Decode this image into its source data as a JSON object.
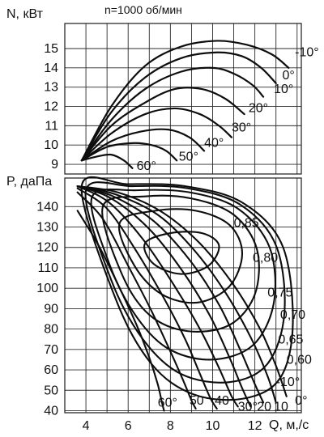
{
  "chart_data": [
    {
      "id": "power",
      "type": "line",
      "title": "n=1000 об/мин",
      "ylabel": "N, кВт",
      "xlabel": "",
      "y_ticks": [
        9,
        10,
        11,
        12,
        13,
        14,
        15
      ],
      "xlim": [
        3,
        14.2
      ],
      "ylim": [
        8.5,
        16.3
      ],
      "grid": true,
      "series": [
        {
          "name": "-10°",
          "points": [
            [
              3.8,
              9.2
            ],
            [
              5.2,
              12.0
            ],
            [
              6.8,
              14.1
            ],
            [
              8.5,
              15.1
            ],
            [
              10.2,
              15.4
            ],
            [
              11.6,
              15.2
            ],
            [
              12.8,
              14.7
            ],
            [
              13.6,
              14.0
            ]
          ]
        },
        {
          "name": "0°",
          "points": [
            [
              3.8,
              9.2
            ],
            [
              5.2,
              11.7
            ],
            [
              6.8,
              13.5
            ],
            [
              8.5,
              14.5
            ],
            [
              10.2,
              14.8
            ],
            [
              11.4,
              14.6
            ],
            [
              12.3,
              14.0
            ],
            [
              13.0,
              13.2
            ]
          ]
        },
        {
          "name": "10°",
          "points": [
            [
              3.8,
              9.2
            ],
            [
              5.2,
              11.3
            ],
            [
              6.8,
              12.9
            ],
            [
              8.5,
              13.8
            ],
            [
              10.0,
              14.0
            ],
            [
              11.0,
              13.7
            ],
            [
              11.9,
              13.1
            ],
            [
              12.4,
              12.5
            ]
          ]
        },
        {
          "name": "20°",
          "points": [
            [
              3.8,
              9.2
            ],
            [
              5.2,
              11.0
            ],
            [
              6.8,
              12.2
            ],
            [
              8.2,
              12.9
            ],
            [
              9.5,
              12.9
            ],
            [
              10.6,
              12.4
            ],
            [
              11.5,
              11.6
            ]
          ]
        },
        {
          "name": "30°",
          "points": [
            [
              3.8,
              9.2
            ],
            [
              5.2,
              10.6
            ],
            [
              6.8,
              11.6
            ],
            [
              8.2,
              11.9
            ],
            [
              9.4,
              11.6
            ],
            [
              10.3,
              11.0
            ],
            [
              10.9,
              10.4
            ]
          ]
        },
        {
          "name": "40°",
          "points": [
            [
              3.8,
              9.2
            ],
            [
              5.2,
              10.2
            ],
            [
              6.6,
              10.7
            ],
            [
              7.9,
              10.8
            ],
            [
              8.9,
              10.4
            ],
            [
              9.6,
              9.7
            ]
          ]
        },
        {
          "name": "50°",
          "points": [
            [
              3.8,
              9.2
            ],
            [
              5.0,
              9.9
            ],
            [
              6.2,
              10.1
            ],
            [
              7.1,
              10.0
            ],
            [
              7.8,
              9.7
            ],
            [
              8.3,
              9.2
            ]
          ]
        },
        {
          "name": "60°",
          "points": [
            [
              3.8,
              9.2
            ],
            [
              4.5,
              9.4
            ],
            [
              5.2,
              9.5
            ],
            [
              5.8,
              9.2
            ],
            [
              6.2,
              8.8
            ]
          ]
        }
      ],
      "labels": [
        {
          "text": "-10°",
          "x": 13.9,
          "y": 14.6
        },
        {
          "text": "0°",
          "x": 13.3,
          "y": 13.4
        },
        {
          "text": "10°",
          "x": 12.9,
          "y": 12.7
        },
        {
          "text": "20°",
          "x": 11.7,
          "y": 11.7
        },
        {
          "text": "30°",
          "x": 10.9,
          "y": 10.7
        },
        {
          "text": "40°",
          "x": 9.6,
          "y": 9.9
        },
        {
          "text": "50°",
          "x": 8.4,
          "y": 9.2
        },
        {
          "text": "60°",
          "x": 6.4,
          "y": 8.7
        }
      ]
    },
    {
      "id": "pressure",
      "type": "line",
      "ylabel": "P, даПа",
      "xlabel": "Q, м,/с",
      "y_ticks": [
        40,
        50,
        60,
        70,
        80,
        90,
        100,
        110,
        120,
        130,
        140
      ],
      "x_ticks": [
        4,
        6,
        8,
        10,
        12
      ],
      "xlim": [
        3,
        14.2
      ],
      "ylim": [
        39,
        154
      ],
      "grid": true,
      "angle_series": [
        {
          "name": "-10°",
          "points": [
            [
              3.6,
              150
            ],
            [
              5.5,
              147
            ],
            [
              7.5,
              138
            ],
            [
              9.3,
              123
            ],
            [
              10.9,
              103
            ],
            [
              12.2,
              81
            ],
            [
              13.0,
              62
            ],
            [
              13.5,
              47
            ]
          ]
        },
        {
          "name": "0°",
          "points": [
            [
              3.6,
              150
            ],
            [
              5.4,
              146
            ],
            [
              7.4,
              136
            ],
            [
              9.1,
              119
            ],
            [
              10.6,
              98
            ],
            [
              11.8,
              76
            ],
            [
              12.6,
              57
            ],
            [
              13.0,
              44
            ]
          ]
        },
        {
          "name": "10°",
          "points": [
            [
              3.6,
              150
            ],
            [
              5.3,
              145
            ],
            [
              7.2,
              133
            ],
            [
              8.9,
              114
            ],
            [
              10.3,
              92
            ],
            [
              11.3,
              70
            ],
            [
              12.0,
              53
            ],
            [
              12.4,
              44
            ]
          ]
        },
        {
          "name": "20°",
          "points": [
            [
              3.6,
              150
            ],
            [
              5.2,
              144
            ],
            [
              7.0,
              129
            ],
            [
              8.6,
              108
            ],
            [
              9.9,
              86
            ],
            [
              10.8,
              66
            ],
            [
              11.4,
              51
            ],
            [
              11.8,
              42
            ]
          ]
        },
        {
          "name": "30°",
          "points": [
            [
              3.6,
              150
            ],
            [
              5.1,
              142
            ],
            [
              6.7,
              124
            ],
            [
              8.2,
              101
            ],
            [
              9.4,
              80
            ],
            [
              10.3,
              61
            ],
            [
              10.9,
              47
            ],
            [
              11.2,
              42
            ]
          ]
        },
        {
          "name": "40°",
          "points": [
            [
              3.6,
              149
            ],
            [
              5.0,
              139
            ],
            [
              6.4,
              118
            ],
            [
              7.7,
              95
            ],
            [
              8.7,
              75
            ],
            [
              9.4,
              58
            ],
            [
              9.9,
              46
            ],
            [
              10.2,
              41
            ]
          ]
        },
        {
          "name": "50°",
          "points": [
            [
              3.6,
              147
            ],
            [
              4.8,
              134
            ],
            [
              6.0,
              111
            ],
            [
              7.1,
              89
            ],
            [
              8.0,
              69
            ],
            [
              8.6,
              55
            ],
            [
              9.0,
              45
            ],
            [
              9.2,
              41
            ]
          ]
        },
        {
          "name": "60°",
          "points": [
            [
              3.6,
              138
            ],
            [
              4.6,
              121
            ],
            [
              5.6,
              100
            ],
            [
              6.4,
              82
            ],
            [
              7.0,
              66
            ],
            [
              7.4,
              53
            ],
            [
              7.6,
              44
            ],
            [
              7.7,
              40
            ]
          ]
        }
      ],
      "efficiency_series": [
        {
          "name": "0,85",
          "points": [
            [
              6.8,
              122
            ],
            [
              8.0,
              127
            ],
            [
              9.5,
              127
            ],
            [
              10.3,
              121
            ],
            [
              9.8,
              111
            ],
            [
              8.5,
              107
            ],
            [
              7.2,
              112
            ]
          ]
        },
        {
          "name": "0,80",
          "points": [
            [
              5.6,
              132
            ],
            [
              7.3,
              138
            ],
            [
              9.2,
              138
            ],
            [
              10.8,
              131
            ],
            [
              11.4,
              117
            ],
            [
              10.8,
              101
            ],
            [
              9.3,
              93
            ],
            [
              7.6,
              97
            ],
            [
              6.3,
              111
            ]
          ]
        },
        {
          "name": "0,75",
          "points": [
            [
              4.8,
              140
            ],
            [
              6.8,
              145
            ],
            [
              9.0,
              144
            ],
            [
              11.0,
              136
            ],
            [
              12.1,
              119
            ],
            [
              12.0,
              97
            ],
            [
              10.8,
              82
            ],
            [
              8.8,
              79
            ],
            [
              7.0,
              87
            ],
            [
              5.7,
              107
            ]
          ]
        },
        {
          "name": "0,70",
          "points": [
            [
              4.3,
              145
            ],
            [
              6.4,
              148
            ],
            [
              8.9,
              147
            ],
            [
              11.2,
              139
            ],
            [
              12.7,
              120
            ],
            [
              12.9,
              93
            ],
            [
              11.9,
              72
            ],
            [
              9.9,
              65
            ],
            [
              7.8,
              71
            ],
            [
              6.2,
              89
            ],
            [
              5.0,
              115
            ]
          ]
        },
        {
          "name": "0,65",
          "points": [
            [
              4.0,
              148
            ],
            [
              6.2,
              150
            ],
            [
              8.8,
              149
            ],
            [
              11.3,
              141
            ],
            [
              13.0,
              121
            ],
            [
              13.4,
              88
            ],
            [
              12.6,
              63
            ],
            [
              10.8,
              54
            ],
            [
              8.5,
              58
            ],
            [
              6.7,
              75
            ],
            [
              5.2,
              104
            ]
          ]
        },
        {
          "name": "0,60",
          "points": [
            [
              3.8,
              150
            ],
            [
              6.0,
              151
            ],
            [
              8.7,
              150
            ],
            [
              11.4,
              142
            ],
            [
              13.3,
              121
            ],
            [
              13.8,
              83
            ],
            [
              13.2,
              56
            ],
            [
              11.5,
              46
            ],
            [
              9.1,
              48
            ],
            [
              7.1,
              63
            ],
            [
              5.4,
              95
            ]
          ]
        }
      ],
      "labels": [
        {
          "text": "0,85",
          "x": 11.0,
          "y": 130
        },
        {
          "text": "0,80",
          "x": 11.9,
          "y": 113
        },
        {
          "text": "0,75",
          "x": 12.6,
          "y": 96
        },
        {
          "text": "0,70",
          "x": 13.2,
          "y": 85
        },
        {
          "text": "0,65",
          "x": 13.1,
          "y": 73
        },
        {
          "text": "0,60",
          "x": 13.5,
          "y": 63
        },
        {
          "text": "-10°",
          "x": 13.0,
          "y": 52
        },
        {
          "text": "0°",
          "x": 13.9,
          "y": 43
        },
        {
          "text": "10",
          "x": 12.9,
          "y": 40
        },
        {
          "text": "20",
          "x": 12.1,
          "y": 40
        },
        {
          "text": "30°",
          "x": 11.2,
          "y": 40
        },
        {
          "text": "40",
          "x": 10.1,
          "y": 43
        },
        {
          "text": "50",
          "x": 8.9,
          "y": 43
        },
        {
          "text": "60°",
          "x": 7.4,
          "y": 42
        }
      ]
    }
  ]
}
